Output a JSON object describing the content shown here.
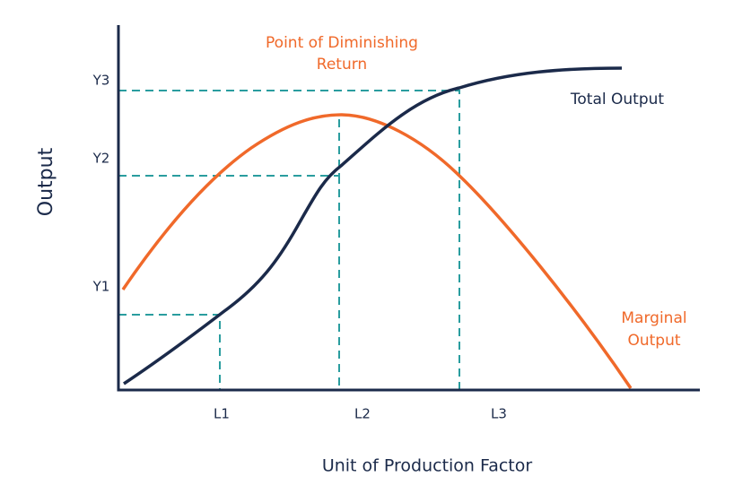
{
  "y_axis_title": "Output",
  "x_axis_title": "Unit of Production Factor",
  "y_labels": [
    "Y1",
    "Y2",
    "Y3"
  ],
  "x_labels": [
    "L1",
    "L2",
    "L3"
  ],
  "diminishing_return_label": [
    "Point of Diminishing",
    "Return"
  ],
  "total_output_label": "Total Output",
  "marginal_output_label": [
    "Marginal",
    "Output"
  ]
}
